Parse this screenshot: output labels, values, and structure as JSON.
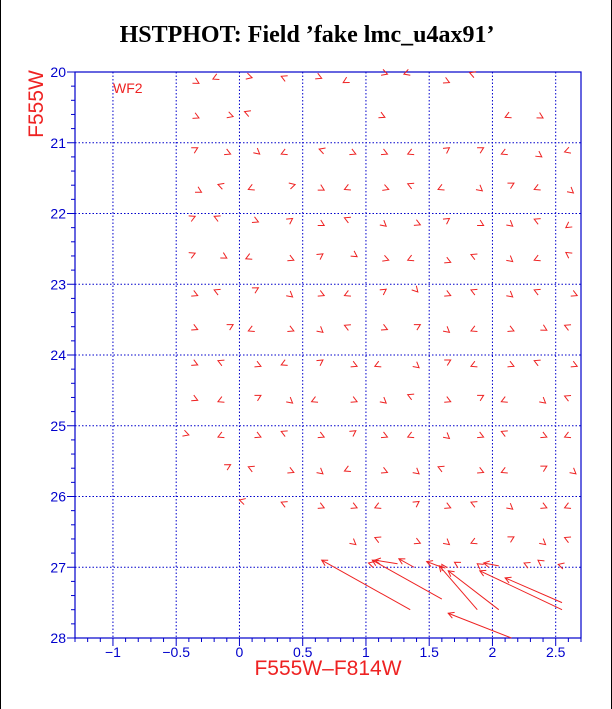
{
  "chart_data": {
    "type": "scatter",
    "title": "HSTPHOT: Field ’fake lmc_u4ax91’",
    "xlabel": "F555W–F814W",
    "ylabel": "F555W",
    "panel_label": "WF2",
    "xlim": [
      -1.3,
      2.7
    ],
    "ylim": [
      28,
      20
    ],
    "y_inverted": true,
    "grid": true,
    "xticks": [
      -1,
      -0.5,
      0,
      0.5,
      1,
      1.5,
      2,
      2.5
    ],
    "xtick_labels": [
      "−1",
      "−0.5",
      "0",
      "0.5",
      "1",
      "1.5",
      "2",
      "2.5"
    ],
    "yticks": [
      20,
      21,
      22,
      23,
      24,
      25,
      26,
      27,
      28
    ],
    "ytick_labels": [
      "20",
      "21",
      "22",
      "23",
      "24",
      "25",
      "26",
      "27",
      "28"
    ],
    "marker": "arrow (from input to recovered position)",
    "colors": {
      "axes": "#0000cc",
      "grid": "#0000cc",
      "arrows": "#ee2222",
      "labels": "#ee2222"
    },
    "arrows": [
      {
        "x": -0.38,
        "y": 20.1,
        "dx": 0.06,
        "dy": 0.06
      },
      {
        "x": -0.15,
        "y": 20.05,
        "dx": -0.06,
        "dy": 0.05
      },
      {
        "x": 0.04,
        "y": 20.05,
        "dx": 0.06,
        "dy": 0.03
      },
      {
        "x": 0.38,
        "y": 20.1,
        "dx": -0.05,
        "dy": -0.04
      },
      {
        "x": 0.6,
        "y": 20.05,
        "dx": 0.05,
        "dy": 0.04
      },
      {
        "x": 0.87,
        "y": 20.1,
        "dx": -0.05,
        "dy": 0.05
      },
      {
        "x": 1.12,
        "y": 20.0,
        "dx": 0.05,
        "dy": 0.03
      },
      {
        "x": 1.35,
        "y": 20.0,
        "dx": -0.05,
        "dy": 0.03
      },
      {
        "x": 1.6,
        "y": 20.1,
        "dx": 0.06,
        "dy": 0.05
      },
      {
        "x": 1.88,
        "y": 20.05,
        "dx": -0.06,
        "dy": -0.04
      },
      {
        "x": -0.38,
        "y": 20.6,
        "dx": 0.06,
        "dy": 0.05
      },
      {
        "x": -0.1,
        "y": 20.6,
        "dx": 0.05,
        "dy": 0.03
      },
      {
        "x": 0.1,
        "y": 20.6,
        "dx": -0.06,
        "dy": -0.04
      },
      {
        "x": 1.1,
        "y": 20.6,
        "dx": 0.05,
        "dy": 0.04
      },
      {
        "x": 2.15,
        "y": 20.6,
        "dx": -0.05,
        "dy": 0.04
      },
      {
        "x": 2.35,
        "y": 20.6,
        "dx": 0.05,
        "dy": 0.05
      },
      {
        "x": -0.38,
        "y": 21.12,
        "dx": 0.05,
        "dy": -0.05
      },
      {
        "x": -0.12,
        "y": 21.12,
        "dx": 0.05,
        "dy": 0.04
      },
      {
        "x": 0.12,
        "y": 21.1,
        "dx": 0.04,
        "dy": 0.06
      },
      {
        "x": 0.38,
        "y": 21.12,
        "dx": -0.05,
        "dy": 0.04
      },
      {
        "x": 0.68,
        "y": 21.12,
        "dx": -0.05,
        "dy": -0.03
      },
      {
        "x": 0.87,
        "y": 21.12,
        "dx": 0.05,
        "dy": 0.04
      },
      {
        "x": 1.12,
        "y": 21.12,
        "dx": 0.05,
        "dy": 0.04
      },
      {
        "x": 1.38,
        "y": 21.12,
        "dx": -0.05,
        "dy": 0.04
      },
      {
        "x": 1.62,
        "y": 21.12,
        "dx": 0.04,
        "dy": -0.05
      },
      {
        "x": 1.88,
        "y": 21.12,
        "dx": 0.05,
        "dy": -0.05
      },
      {
        "x": 2.12,
        "y": 21.12,
        "dx": -0.05,
        "dy": 0.04
      },
      {
        "x": 2.35,
        "y": 21.15,
        "dx": 0.04,
        "dy": 0.05
      },
      {
        "x": 2.62,
        "y": 21.1,
        "dx": -0.05,
        "dy": 0.03
      },
      {
        "x": -0.35,
        "y": 21.65,
        "dx": 0.05,
        "dy": 0.05
      },
      {
        "x": -0.12,
        "y": 21.62,
        "dx": -0.05,
        "dy": -0.03
      },
      {
        "x": 0.12,
        "y": 21.62,
        "dx": -0.05,
        "dy": 0.04
      },
      {
        "x": 0.38,
        "y": 21.62,
        "dx": 0.06,
        "dy": -0.03
      },
      {
        "x": 0.62,
        "y": 21.62,
        "dx": 0.05,
        "dy": 0.05
      },
      {
        "x": 0.88,
        "y": 21.62,
        "dx": -0.05,
        "dy": 0.04
      },
      {
        "x": 1.12,
        "y": 21.62,
        "dx": 0.06,
        "dy": 0.04
      },
      {
        "x": 1.38,
        "y": 21.62,
        "dx": -0.05,
        "dy": -0.04
      },
      {
        "x": 1.62,
        "y": 21.62,
        "dx": -0.05,
        "dy": 0.04
      },
      {
        "x": 1.88,
        "y": 21.62,
        "dx": 0.04,
        "dy": 0.06
      },
      {
        "x": 2.12,
        "y": 21.62,
        "dx": 0.05,
        "dy": -0.05
      },
      {
        "x": 2.38,
        "y": 21.62,
        "dx": -0.05,
        "dy": 0.04
      },
      {
        "x": 2.6,
        "y": 21.65,
        "dx": 0.04,
        "dy": 0.06
      },
      {
        "x": -0.4,
        "y": 22.08,
        "dx": 0.05,
        "dy": -0.04
      },
      {
        "x": -0.15,
        "y": 22.08,
        "dx": -0.05,
        "dy": -0.04
      },
      {
        "x": 0.1,
        "y": 22.08,
        "dx": 0.05,
        "dy": 0.04
      },
      {
        "x": 0.38,
        "y": 22.12,
        "dx": 0.04,
        "dy": -0.05
      },
      {
        "x": 0.62,
        "y": 22.12,
        "dx": 0.05,
        "dy": 0.05
      },
      {
        "x": 0.88,
        "y": 22.1,
        "dx": -0.05,
        "dy": -0.04
      },
      {
        "x": 1.12,
        "y": 22.12,
        "dx": 0.04,
        "dy": 0.06
      },
      {
        "x": 1.38,
        "y": 22.12,
        "dx": 0.05,
        "dy": 0.04
      },
      {
        "x": 1.62,
        "y": 22.12,
        "dx": 0.04,
        "dy": -0.05
      },
      {
        "x": 1.88,
        "y": 22.12,
        "dx": 0.05,
        "dy": 0.05
      },
      {
        "x": 2.12,
        "y": 22.12,
        "dx": 0.04,
        "dy": 0.06
      },
      {
        "x": 2.38,
        "y": 22.12,
        "dx": -0.05,
        "dy": -0.04
      },
      {
        "x": 2.62,
        "y": 22.15,
        "dx": -0.04,
        "dy": 0.05
      },
      {
        "x": -0.4,
        "y": 22.6,
        "dx": 0.05,
        "dy": -0.04
      },
      {
        "x": -0.15,
        "y": 22.58,
        "dx": 0.05,
        "dy": 0.05
      },
      {
        "x": 0.1,
        "y": 22.6,
        "dx": -0.05,
        "dy": 0.04
      },
      {
        "x": 0.38,
        "y": 22.62,
        "dx": 0.05,
        "dy": 0.04
      },
      {
        "x": 0.62,
        "y": 22.62,
        "dx": 0.04,
        "dy": -0.05
      },
      {
        "x": 0.88,
        "y": 22.55,
        "dx": 0.05,
        "dy": 0.06
      },
      {
        "x": 1.12,
        "y": 22.62,
        "dx": 0.06,
        "dy": 0.04
      },
      {
        "x": 1.38,
        "y": 22.62,
        "dx": -0.05,
        "dy": 0.04
      },
      {
        "x": 1.62,
        "y": 22.65,
        "dx": 0.05,
        "dy": 0.04
      },
      {
        "x": 1.88,
        "y": 22.62,
        "dx": -0.05,
        "dy": -0.04
      },
      {
        "x": 2.12,
        "y": 22.62,
        "dx": 0.04,
        "dy": 0.06
      },
      {
        "x": 2.38,
        "y": 22.62,
        "dx": -0.05,
        "dy": 0.04
      },
      {
        "x": 2.62,
        "y": 22.6,
        "dx": -0.04,
        "dy": -0.05
      },
      {
        "x": -0.38,
        "y": 23.12,
        "dx": 0.05,
        "dy": 0.04
      },
      {
        "x": -0.15,
        "y": 23.12,
        "dx": -0.05,
        "dy": -0.04
      },
      {
        "x": 0.1,
        "y": 23.1,
        "dx": 0.05,
        "dy": -0.05
      },
      {
        "x": 0.38,
        "y": 23.12,
        "dx": 0.04,
        "dy": 0.06
      },
      {
        "x": 0.62,
        "y": 23.12,
        "dx": 0.05,
        "dy": 0.04
      },
      {
        "x": 0.88,
        "y": 23.12,
        "dx": -0.05,
        "dy": 0.04
      },
      {
        "x": 1.12,
        "y": 23.12,
        "dx": 0.04,
        "dy": -0.05
      },
      {
        "x": 1.38,
        "y": 23.05,
        "dx": 0.03,
        "dy": 0.06
      },
      {
        "x": 1.62,
        "y": 23.12,
        "dx": 0.05,
        "dy": 0.04
      },
      {
        "x": 1.88,
        "y": 23.12,
        "dx": -0.05,
        "dy": -0.04
      },
      {
        "x": 2.12,
        "y": 23.12,
        "dx": 0.04,
        "dy": 0.06
      },
      {
        "x": 2.38,
        "y": 23.12,
        "dx": -0.05,
        "dy": -0.04
      },
      {
        "x": 2.62,
        "y": 23.12,
        "dx": 0.05,
        "dy": 0.04
      },
      {
        "x": -0.38,
        "y": 23.6,
        "dx": 0.05,
        "dy": 0.04
      },
      {
        "x": -0.1,
        "y": 23.62,
        "dx": 0.05,
        "dy": -0.05
      },
      {
        "x": 0.12,
        "y": 23.62,
        "dx": -0.05,
        "dy": 0.04
      },
      {
        "x": 0.38,
        "y": 23.62,
        "dx": 0.05,
        "dy": 0.04
      },
      {
        "x": 0.62,
        "y": 23.62,
        "dx": 0.04,
        "dy": 0.06
      },
      {
        "x": 0.88,
        "y": 23.62,
        "dx": -0.05,
        "dy": -0.04
      },
      {
        "x": 1.12,
        "y": 23.6,
        "dx": 0.05,
        "dy": 0.04
      },
      {
        "x": 1.38,
        "y": 23.62,
        "dx": 0.05,
        "dy": -0.05
      },
      {
        "x": 1.62,
        "y": 23.62,
        "dx": 0.04,
        "dy": 0.06
      },
      {
        "x": 1.88,
        "y": 23.62,
        "dx": -0.05,
        "dy": 0.04
      },
      {
        "x": 2.12,
        "y": 23.62,
        "dx": 0.05,
        "dy": 0.04
      },
      {
        "x": 2.38,
        "y": 23.6,
        "dx": 0.05,
        "dy": 0.05
      },
      {
        "x": 2.62,
        "y": 23.62,
        "dx": -0.05,
        "dy": -0.04
      },
      {
        "x": -0.38,
        "y": 24.1,
        "dx": 0.05,
        "dy": 0.04
      },
      {
        "x": -0.12,
        "y": 24.12,
        "dx": -0.05,
        "dy": -0.04
      },
      {
        "x": 0.12,
        "y": 24.12,
        "dx": 0.05,
        "dy": 0.04
      },
      {
        "x": 0.38,
        "y": 24.1,
        "dx": -0.05,
        "dy": 0.04
      },
      {
        "x": 0.62,
        "y": 24.12,
        "dx": 0.04,
        "dy": -0.05
      },
      {
        "x": 0.88,
        "y": 24.12,
        "dx": 0.05,
        "dy": 0.04
      },
      {
        "x": 1.12,
        "y": 24.12,
        "dx": -0.05,
        "dy": 0.04
      },
      {
        "x": 1.38,
        "y": 24.12,
        "dx": 0.04,
        "dy": 0.06
      },
      {
        "x": 1.62,
        "y": 24.12,
        "dx": 0.05,
        "dy": -0.05
      },
      {
        "x": 1.88,
        "y": 24.12,
        "dx": -0.05,
        "dy": 0.04
      },
      {
        "x": 2.12,
        "y": 24.12,
        "dx": 0.05,
        "dy": 0.04
      },
      {
        "x": 2.38,
        "y": 24.12,
        "dx": -0.05,
        "dy": -0.04
      },
      {
        "x": 2.62,
        "y": 24.12,
        "dx": 0.05,
        "dy": 0.04
      },
      {
        "x": -0.38,
        "y": 24.6,
        "dx": 0.05,
        "dy": 0.04
      },
      {
        "x": -0.12,
        "y": 24.62,
        "dx": -0.05,
        "dy": 0.04
      },
      {
        "x": 0.12,
        "y": 24.62,
        "dx": 0.05,
        "dy": -0.05
      },
      {
        "x": 0.38,
        "y": 24.62,
        "dx": 0.04,
        "dy": 0.06
      },
      {
        "x": 0.62,
        "y": 24.62,
        "dx": -0.05,
        "dy": 0.04
      },
      {
        "x": 0.88,
        "y": 24.62,
        "dx": 0.05,
        "dy": 0.04
      },
      {
        "x": 1.12,
        "y": 24.62,
        "dx": 0.04,
        "dy": 0.06
      },
      {
        "x": 1.38,
        "y": 24.6,
        "dx": -0.05,
        "dy": -0.04
      },
      {
        "x": 1.62,
        "y": 24.62,
        "dx": 0.05,
        "dy": 0.04
      },
      {
        "x": 1.88,
        "y": 24.62,
        "dx": 0.05,
        "dy": -0.05
      },
      {
        "x": 2.12,
        "y": 24.62,
        "dx": -0.05,
        "dy": 0.04
      },
      {
        "x": 2.38,
        "y": 24.62,
        "dx": 0.04,
        "dy": 0.06
      },
      {
        "x": 2.62,
        "y": 24.62,
        "dx": -0.05,
        "dy": -0.04
      },
      {
        "x": -0.45,
        "y": 25.1,
        "dx": 0.05,
        "dy": 0.03
      },
      {
        "x": -0.12,
        "y": 25.12,
        "dx": -0.05,
        "dy": 0.04
      },
      {
        "x": 0.12,
        "y": 25.12,
        "dx": 0.05,
        "dy": 0.04
      },
      {
        "x": 0.38,
        "y": 25.12,
        "dx": -0.05,
        "dy": -0.04
      },
      {
        "x": 0.62,
        "y": 25.12,
        "dx": 0.05,
        "dy": 0.04
      },
      {
        "x": 0.88,
        "y": 25.12,
        "dx": 0.04,
        "dy": -0.05
      },
      {
        "x": 1.12,
        "y": 25.12,
        "dx": 0.05,
        "dy": 0.04
      },
      {
        "x": 1.38,
        "y": 25.12,
        "dx": -0.05,
        "dy": 0.04
      },
      {
        "x": 1.62,
        "y": 25.12,
        "dx": 0.04,
        "dy": 0.06
      },
      {
        "x": 1.88,
        "y": 25.12,
        "dx": 0.05,
        "dy": 0.04
      },
      {
        "x": 2.12,
        "y": 25.12,
        "dx": -0.05,
        "dy": -0.04
      },
      {
        "x": 2.38,
        "y": 25.12,
        "dx": 0.05,
        "dy": 0.04
      },
      {
        "x": 2.62,
        "y": 25.12,
        "dx": -0.05,
        "dy": 0.04
      },
      {
        "x": -0.12,
        "y": 25.6,
        "dx": 0.05,
        "dy": -0.05
      },
      {
        "x": 0.12,
        "y": 25.62,
        "dx": -0.05,
        "dy": -0.04
      },
      {
        "x": 0.38,
        "y": 25.62,
        "dx": 0.05,
        "dy": 0.04
      },
      {
        "x": 0.62,
        "y": 25.62,
        "dx": 0.04,
        "dy": 0.06
      },
      {
        "x": 0.88,
        "y": 25.6,
        "dx": -0.05,
        "dy": 0.04
      },
      {
        "x": 1.12,
        "y": 25.62,
        "dx": 0.05,
        "dy": 0.04
      },
      {
        "x": 1.38,
        "y": 25.62,
        "dx": 0.04,
        "dy": 0.06
      },
      {
        "x": 1.62,
        "y": 25.62,
        "dx": -0.05,
        "dy": -0.04
      },
      {
        "x": 1.88,
        "y": 25.62,
        "dx": 0.05,
        "dy": 0.04
      },
      {
        "x": 2.12,
        "y": 25.62,
        "dx": -0.05,
        "dy": 0.04
      },
      {
        "x": 2.38,
        "y": 25.62,
        "dx": 0.05,
        "dy": -0.05
      },
      {
        "x": 2.62,
        "y": 25.62,
        "dx": 0.04,
        "dy": 0.06
      },
      {
        "x": 0.1,
        "y": 26.1,
        "dx": -0.1,
        "dy": -0.05
      },
      {
        "x": 0.38,
        "y": 26.12,
        "dx": -0.05,
        "dy": -0.04
      },
      {
        "x": 0.62,
        "y": 26.12,
        "dx": 0.05,
        "dy": 0.04
      },
      {
        "x": 0.88,
        "y": 26.12,
        "dx": 0.05,
        "dy": 0.04
      },
      {
        "x": 1.12,
        "y": 26.12,
        "dx": -0.05,
        "dy": 0.04
      },
      {
        "x": 1.38,
        "y": 26.12,
        "dx": 0.04,
        "dy": -0.05
      },
      {
        "x": 1.62,
        "y": 26.12,
        "dx": 0.05,
        "dy": 0.04
      },
      {
        "x": 1.88,
        "y": 26.12,
        "dx": -0.05,
        "dy": -0.04
      },
      {
        "x": 2.12,
        "y": 26.12,
        "dx": 0.04,
        "dy": 0.06
      },
      {
        "x": 2.38,
        "y": 26.12,
        "dx": 0.05,
        "dy": 0.04
      },
      {
        "x": 2.62,
        "y": 26.12,
        "dx": -0.05,
        "dy": 0.04
      },
      {
        "x": 0.88,
        "y": 26.62,
        "dx": 0.04,
        "dy": 0.06
      },
      {
        "x": 1.12,
        "y": 26.62,
        "dx": -0.05,
        "dy": -0.04
      },
      {
        "x": 1.38,
        "y": 26.62,
        "dx": 0.05,
        "dy": 0.04
      },
      {
        "x": 1.62,
        "y": 26.62,
        "dx": 0.04,
        "dy": 0.06
      },
      {
        "x": 1.88,
        "y": 26.62,
        "dx": -0.05,
        "dy": 0.04
      },
      {
        "x": 2.12,
        "y": 26.62,
        "dx": 0.05,
        "dy": -0.05
      },
      {
        "x": 2.38,
        "y": 26.62,
        "dx": 0.04,
        "dy": 0.06
      },
      {
        "x": 2.62,
        "y": 26.62,
        "dx": -0.05,
        "dy": -0.04
      },
      {
        "x": 1.35,
        "y": 27.6,
        "dx": -0.7,
        "dy": -0.7
      },
      {
        "x": 1.6,
        "y": 27.45,
        "dx": -0.55,
        "dy": -0.55
      },
      {
        "x": 1.88,
        "y": 27.6,
        "dx": -0.3,
        "dy": -0.62
      },
      {
        "x": 2.05,
        "y": 27.6,
        "dx": -0.4,
        "dy": -0.55
      },
      {
        "x": 2.15,
        "y": 28.0,
        "dx": -0.5,
        "dy": -0.35
      },
      {
        "x": 2.55,
        "y": 27.6,
        "dx": -0.65,
        "dy": -0.55
      },
      {
        "x": 2.55,
        "y": 27.5,
        "dx": -0.45,
        "dy": -0.35
      },
      {
        "x": 1.25,
        "y": 26.95,
        "dx": -0.18,
        "dy": -0.05
      },
      {
        "x": 1.38,
        "y": 27.0,
        "dx": -0.12,
        "dy": -0.12
      },
      {
        "x": 1.6,
        "y": 27.0,
        "dx": -0.12,
        "dy": -0.08
      },
      {
        "x": 1.75,
        "y": 26.98,
        "dx": -0.05,
        "dy": -0.05
      },
      {
        "x": 2.05,
        "y": 26.98,
        "dx": -0.12,
        "dy": -0.04
      },
      {
        "x": 2.3,
        "y": 26.98,
        "dx": -0.05,
        "dy": -0.04
      },
      {
        "x": 2.6,
        "y": 27.0,
        "dx": -0.08,
        "dy": -0.04
      },
      {
        "x": 1.62,
        "y": 27.02,
        "dx": -0.02,
        "dy": -0.06
      },
      {
        "x": 1.92,
        "y": 27.0,
        "dx": -0.04,
        "dy": -0.05
      },
      {
        "x": 1.1,
        "y": 26.98,
        "dx": -0.08,
        "dy": -0.04
      },
      {
        "x": 2.4,
        "y": 26.95,
        "dx": -0.04,
        "dy": -0.05
      }
    ]
  }
}
